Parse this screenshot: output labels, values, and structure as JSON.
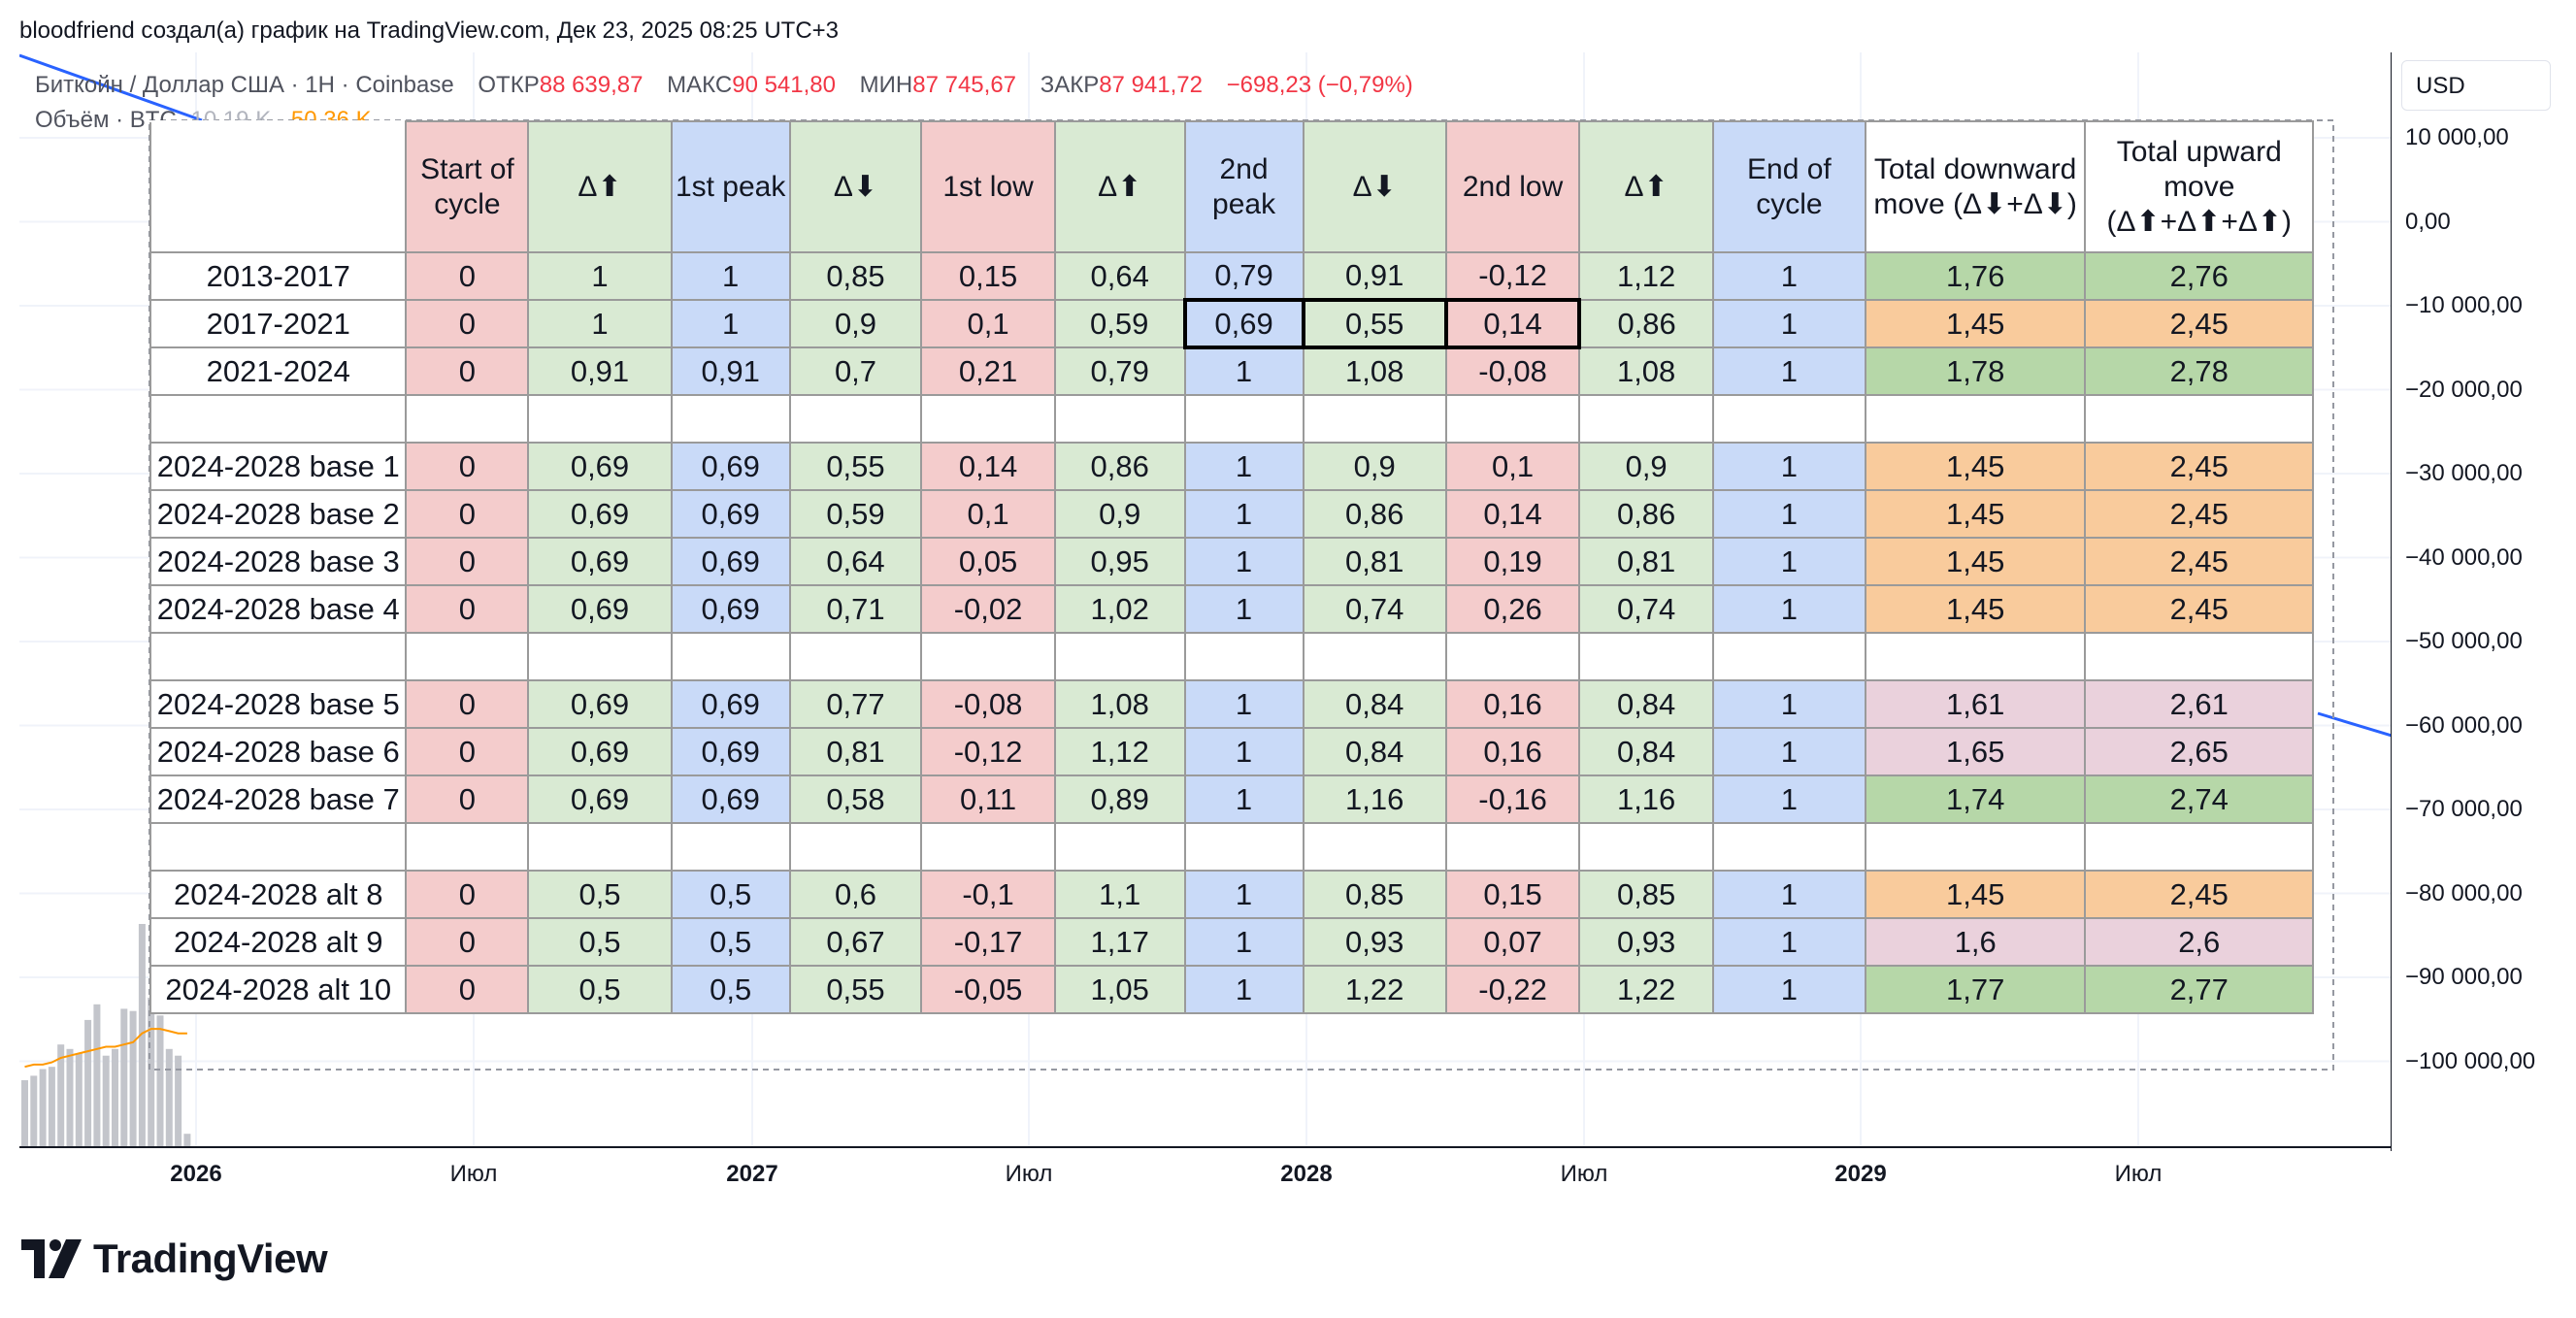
{
  "attribution": "bloodfriend создал(а) график на TradingView.com, Дек 23, 2025 08:25 UTC+3",
  "symbol": {
    "name": "Биткойн / Доллар США · 1H · Coinbase",
    "open_label": "ОТКР",
    "open": "88 639,87",
    "high_label": "МАКС",
    "high": "90 541,80",
    "low_label": "МИН",
    "low": "87 745,67",
    "close_label": "ЗАКР",
    "close": "87 941,72",
    "change": "−698,23 (−0,79%)"
  },
  "volume": {
    "label": "Объём · BTC",
    "value1": "10,19 K",
    "value2": "50,36 K"
  },
  "currency": "USD",
  "brand": "TradingView",
  "colors": {
    "red_cell": "#f4cccc",
    "green_cell": "#d9ead3",
    "blue_cell": "#c9daf8",
    "orange_cell": "#f9cb9c",
    "pink_cell": "#ead1dc",
    "strong_green_cell": "#b6d7a8",
    "trend_line": "#2962ff",
    "volume_ma": "#ff9800",
    "volume_bar": "#c3c5cb"
  },
  "chart_data": {
    "type": "table",
    "y_ticks": [
      "10 000,00",
      "0,00",
      "−10 000,00",
      "−20 000,00",
      "−30 000,00",
      "−40 000,00",
      "−50 000,00",
      "−60 000,00",
      "−70 000,00",
      "−80 000,00",
      "−90 000,00",
      "−100 000,00"
    ],
    "x_ticks": [
      {
        "label": "2026",
        "bold": true
      },
      {
        "label": "Июл",
        "bold": false
      },
      {
        "label": "2027",
        "bold": true
      },
      {
        "label": "Июл",
        "bold": false
      },
      {
        "label": "2028",
        "bold": true
      },
      {
        "label": "Июл",
        "bold": false
      },
      {
        "label": "2029",
        "bold": true
      },
      {
        "label": "Июл",
        "bold": false
      }
    ],
    "volume_bars": [
      0.3,
      0.32,
      0.35,
      0.36,
      0.46,
      0.44,
      0.42,
      0.57,
      0.64,
      0.41,
      0.44,
      0.62,
      0.61,
      1.0,
      0.67,
      0.59,
      0.44,
      0.41,
      0.06
    ],
    "columns": [
      {
        "label": "",
        "color": "white"
      },
      {
        "label": "Start of cycle",
        "color": "red"
      },
      {
        "label": "Δ⬆",
        "color": "green"
      },
      {
        "label": "1st peak",
        "color": "blue"
      },
      {
        "label": "Δ⬇",
        "color": "green"
      },
      {
        "label": "1st low",
        "color": "red"
      },
      {
        "label": "Δ⬆",
        "color": "green"
      },
      {
        "label": "2nd peak",
        "color": "blue"
      },
      {
        "label": "Δ⬇",
        "color": "green"
      },
      {
        "label": "2nd low",
        "color": "red"
      },
      {
        "label": "Δ⬆",
        "color": "green"
      },
      {
        "label": "End of cycle",
        "color": "blue"
      },
      {
        "label": "Total downward move (Δ⬇+Δ⬇)",
        "color": "white"
      },
      {
        "label": "Total upward move (Δ⬆+Δ⬆+Δ⬆)",
        "color": "white"
      }
    ],
    "rows": [
      {
        "label": "2013-2017",
        "values": [
          "0",
          "1",
          "1",
          "0,85",
          "0,15",
          "0,64",
          "0,79",
          "0,91",
          "-0,12",
          "1,12",
          "1",
          "1,76",
          "2,76"
        ],
        "total_color": "strong_green"
      },
      {
        "label": "2017-2021",
        "values": [
          "0",
          "1",
          "1",
          "0,9",
          "0,1",
          "0,59",
          "0,69",
          "0,55",
          "0,14",
          "0,86",
          "1",
          "1,45",
          "2,45"
        ],
        "total_color": "orange",
        "highlight": [
          6,
          7,
          8
        ]
      },
      {
        "label": "2021-2024",
        "values": [
          "0",
          "0,91",
          "0,91",
          "0,7",
          "0,21",
          "0,79",
          "1",
          "1,08",
          "-0,08",
          "1,08",
          "1",
          "1,78",
          "2,78"
        ],
        "total_color": "strong_green"
      },
      {
        "gap": true
      },
      {
        "label": "2024-2028 base 1",
        "values": [
          "0",
          "0,69",
          "0,69",
          "0,55",
          "0,14",
          "0,86",
          "1",
          "0,9",
          "0,1",
          "0,9",
          "1",
          "1,45",
          "2,45"
        ],
        "total_color": "orange"
      },
      {
        "label": "2024-2028 base 2",
        "values": [
          "0",
          "0,69",
          "0,69",
          "0,59",
          "0,1",
          "0,9",
          "1",
          "0,86",
          "0,14",
          "0,86",
          "1",
          "1,45",
          "2,45"
        ],
        "total_color": "orange"
      },
      {
        "label": "2024-2028 base 3",
        "values": [
          "0",
          "0,69",
          "0,69",
          "0,64",
          "0,05",
          "0,95",
          "1",
          "0,81",
          "0,19",
          "0,81",
          "1",
          "1,45",
          "2,45"
        ],
        "total_color": "orange"
      },
      {
        "label": "2024-2028 base 4",
        "values": [
          "0",
          "0,69",
          "0,69",
          "0,71",
          "-0,02",
          "1,02",
          "1",
          "0,74",
          "0,26",
          "0,74",
          "1",
          "1,45",
          "2,45"
        ],
        "total_color": "orange"
      },
      {
        "gap": true
      },
      {
        "label": "2024-2028 base 5",
        "values": [
          "0",
          "0,69",
          "0,69",
          "0,77",
          "-0,08",
          "1,08",
          "1",
          "0,84",
          "0,16",
          "0,84",
          "1",
          "1,61",
          "2,61"
        ],
        "total_color": "pink"
      },
      {
        "label": "2024-2028 base 6",
        "values": [
          "0",
          "0,69",
          "0,69",
          "0,81",
          "-0,12",
          "1,12",
          "1",
          "0,84",
          "0,16",
          "0,84",
          "1",
          "1,65",
          "2,65"
        ],
        "total_color": "pink"
      },
      {
        "label": "2024-2028 base 7",
        "values": [
          "0",
          "0,69",
          "0,69",
          "0,58",
          "0,11",
          "0,89",
          "1",
          "1,16",
          "-0,16",
          "1,16",
          "1",
          "1,74",
          "2,74"
        ],
        "total_color": "strong_green"
      },
      {
        "gap": true
      },
      {
        "label": "2024-2028 alt 8",
        "values": [
          "0",
          "0,5",
          "0,5",
          "0,6",
          "-0,1",
          "1,1",
          "1",
          "0,85",
          "0,15",
          "0,85",
          "1",
          "1,45",
          "2,45"
        ],
        "total_color": "orange"
      },
      {
        "label": "2024-2028 alt 9",
        "values": [
          "0",
          "0,5",
          "0,5",
          "0,67",
          "-0,17",
          "1,17",
          "1",
          "0,93",
          "0,07",
          "0,93",
          "1",
          "1,6",
          "2,6"
        ],
        "total_color": "pink"
      },
      {
        "label": "2024-2028 alt 10",
        "values": [
          "0",
          "0,5",
          "0,5",
          "0,55",
          "-0,05",
          "1,05",
          "1",
          "1,22",
          "-0,22",
          "1,22",
          "1",
          "1,77",
          "2,77"
        ],
        "total_color": "strong_green"
      }
    ]
  }
}
